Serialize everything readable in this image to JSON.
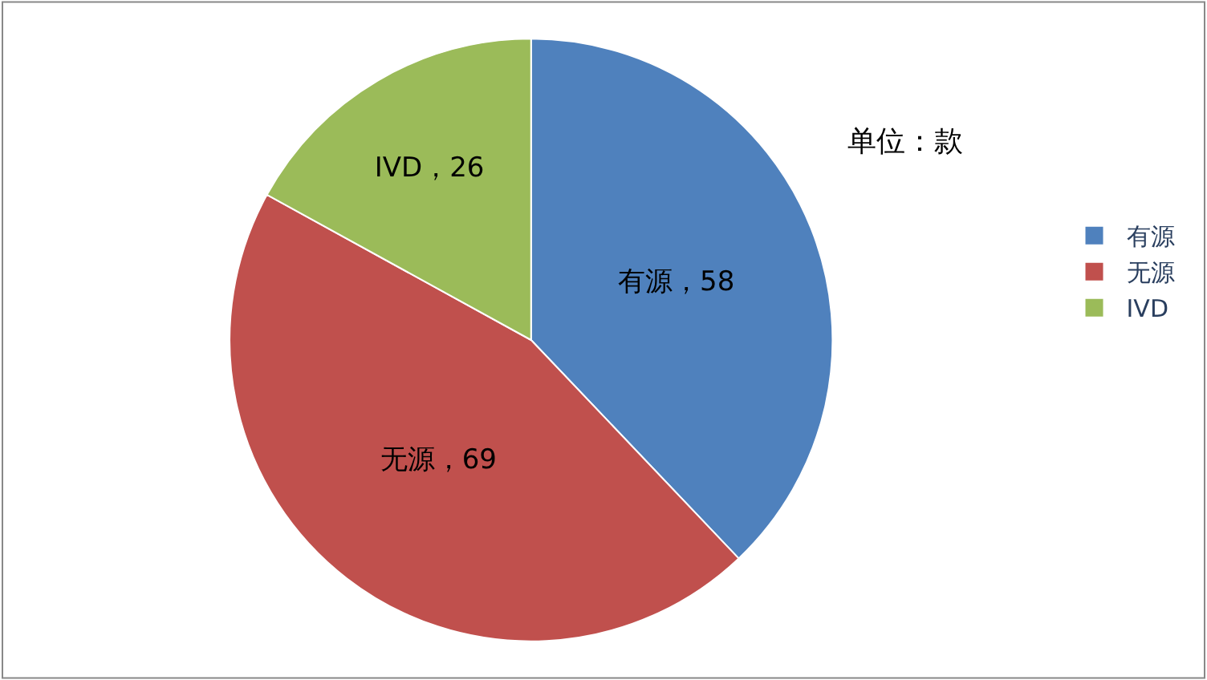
{
  "chart_data": {
    "type": "pie",
    "categories": [
      "有源",
      "无源",
      "IVD"
    ],
    "values": [
      58,
      69,
      26
    ],
    "colors": [
      "#4f81bd",
      "#c0504d",
      "#9bbb59"
    ],
    "value_labels": [
      "有源，58",
      "无源，69",
      "IVD，26"
    ],
    "annotations": [
      "单位：款"
    ],
    "legend": "right"
  }
}
